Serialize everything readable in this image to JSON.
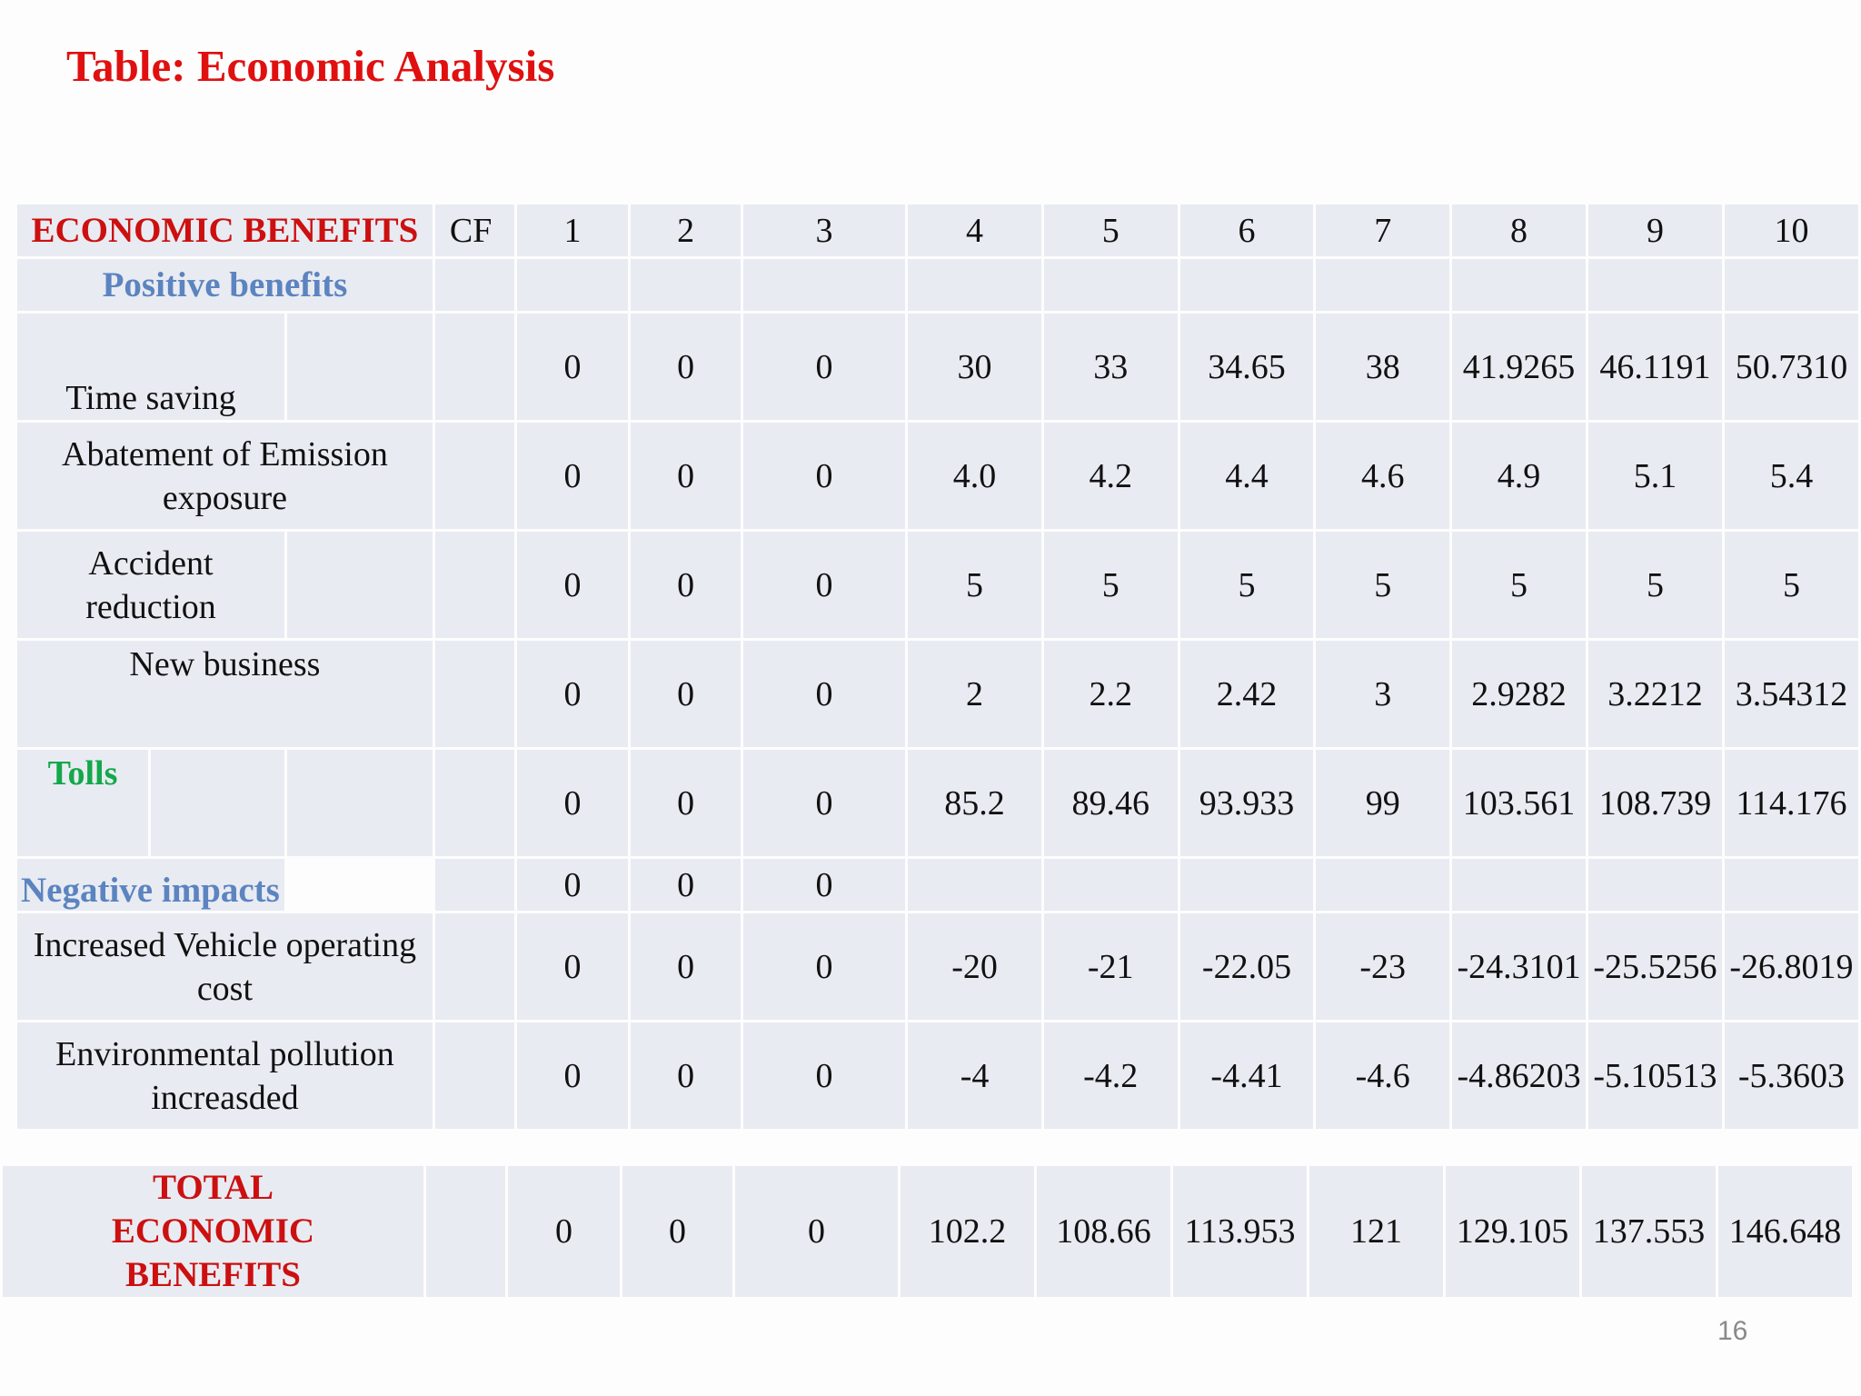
{
  "title": "Table: Economic Analysis",
  "page_number": "16",
  "header": {
    "label": "ECONOMIC BENEFITS",
    "cf": "CF",
    "years": [
      "1",
      "2",
      "3",
      "4",
      "5",
      "6",
      "7",
      "8",
      "9",
      "10"
    ]
  },
  "rows": {
    "positive": {
      "label": "Positive benefits"
    },
    "time_saving": {
      "label": "Time saving",
      "values": [
        "0",
        "0",
        "0",
        "30",
        "33",
        "34.65",
        "38",
        "41.9265",
        "46.1191",
        "50.7310"
      ]
    },
    "emission": {
      "label": "Abatement of Emission exposure",
      "values": [
        "0",
        "0",
        "0",
        "4.0",
        "4.2",
        "4.4",
        "4.6",
        "4.9",
        "5.1",
        "5.4"
      ]
    },
    "accident": {
      "label": "Accident reduction",
      "values": [
        "0",
        "0",
        "0",
        "5",
        "5",
        "5",
        "5",
        "5",
        "5",
        "5"
      ]
    },
    "new_business": {
      "label": "New business",
      "values": [
        "0",
        "0",
        "0",
        "2",
        "2.2",
        "2.42",
        "3",
        "2.9282",
        "3.2212",
        "3.54312"
      ]
    },
    "tolls": {
      "label": "Tolls",
      "values": [
        "0",
        "0",
        "0",
        "85.2",
        "89.46",
        "93.933",
        "99",
        "103.561",
        "108.739",
        "114.176"
      ]
    },
    "negative": {
      "label": "Negative impacts",
      "values": [
        "0",
        "0",
        "0",
        "",
        "",
        "",
        "",
        "",
        "",
        ""
      ]
    },
    "vehicle_cost": {
      "label": "Increased Vehicle operating cost",
      "values": [
        "0",
        "0",
        "0",
        "-20",
        "-21",
        "-22.05",
        "-23",
        "-24.3101",
        "-25.5256",
        "-26.8019"
      ]
    },
    "pollution": {
      "label": "Environmental pollution increasded",
      "values": [
        "0",
        "0",
        "0",
        "-4",
        "-4.2",
        "-4.41",
        "-4.6",
        "-4.86203",
        "-5.10513",
        "-5.3603"
      ]
    }
  },
  "total": {
    "label": "TOTAL ECONOMIC BENEFITS",
    "values": [
      "0",
      "0",
      "0",
      "102.2",
      "108.66",
      "113.953",
      "121",
      "129.105",
      "137.553",
      "146.648"
    ]
  },
  "colors": {
    "title": "#e01010",
    "header_red": "#cc1010",
    "blue": "#5b84c0",
    "green": "#13a84a",
    "cell_bg": "#e9ebf2"
  }
}
